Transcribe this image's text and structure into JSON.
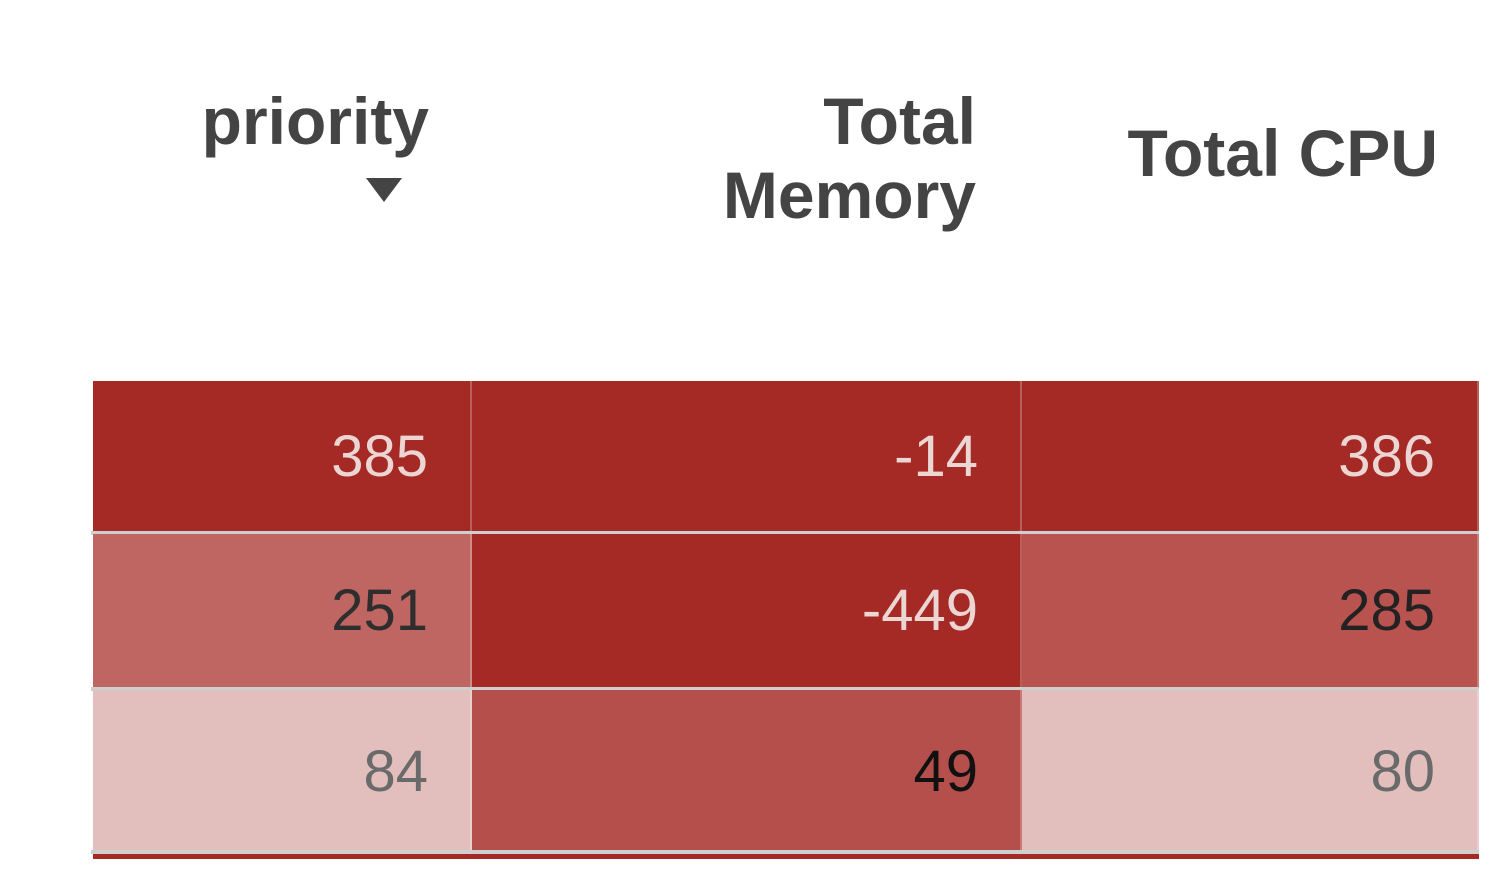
{
  "table": {
    "columns": [
      "priority",
      "Total Memory",
      "Total CPU"
    ],
    "rows": [
      [
        "385",
        "-14",
        "386"
      ],
      [
        "251",
        "-449",
        "285"
      ],
      [
        "84",
        "49",
        "80"
      ]
    ],
    "cell_colors": [
      [
        "#a52a25",
        "#a52a25",
        "#a52a25"
      ],
      [
        "#c06662",
        "#a52a25",
        "#b9534f"
      ],
      [
        "#e2bfbd",
        "#b44f4b",
        "#e2bfbd"
      ]
    ],
    "text_colors": [
      [
        "#ecd6d4",
        "#ecd6d4",
        "#ecd6d4"
      ],
      [
        "#2e2e2e",
        "#ecd6d4",
        "#222222"
      ],
      [
        "#6a6a6a",
        "#111111",
        "#6a6a6a"
      ]
    ]
  }
}
